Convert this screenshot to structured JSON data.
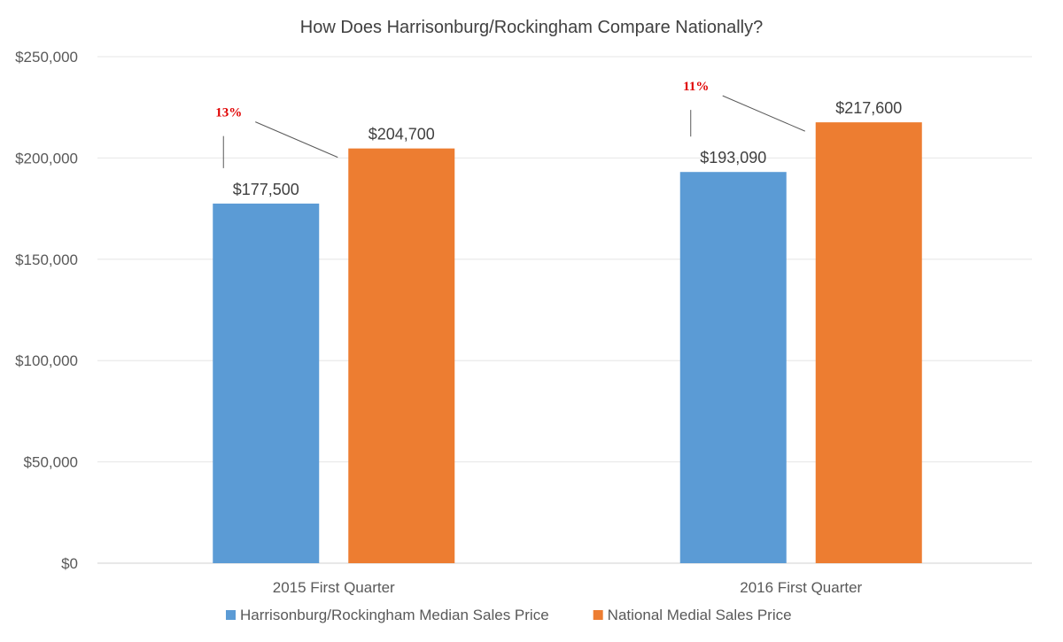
{
  "chart_data": {
    "type": "bar",
    "title": "How Does Harrisonburg/Rockingham Compare Nationally?",
    "categories": [
      "2015 First Quarter",
      "2016 First Quarter"
    ],
    "series": [
      {
        "name": "Harrisonburg/Rockingham Median Sales Price",
        "color": "#5b9bd5",
        "values": [
          177500,
          193090
        ],
        "labels": [
          "$177,500",
          "$193,090"
        ]
      },
      {
        "name": "National Medial Sales Price",
        "color": "#ed7d31",
        "values": [
          204700,
          217600
        ],
        "labels": [
          "$204,700",
          "$217,600"
        ]
      }
    ],
    "annotations": [
      {
        "category": "2015 First Quarter",
        "text": "13%",
        "color": "#e00000"
      },
      {
        "category": "2016 First Quarter",
        "text": "11%",
        "color": "#e00000"
      }
    ],
    "ylim": [
      0,
      250000
    ],
    "yticks": [
      0,
      50000,
      100000,
      150000,
      200000,
      250000
    ],
    "ytick_labels": [
      "$0",
      "$50,000",
      "$100,000",
      "$150,000",
      "$200,000",
      "$250,000"
    ],
    "grid": true,
    "legend_position": "bottom"
  }
}
